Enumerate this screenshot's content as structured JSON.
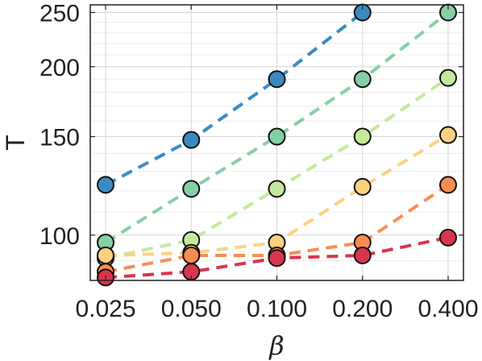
{
  "chart_data": {
    "type": "scatter",
    "x_scale": "log",
    "y_scale": "log",
    "grid": true,
    "minor_grid": true,
    "xlabel": "β",
    "ylabel": "T",
    "x": [
      0.025,
      0.05,
      0.1,
      0.2,
      0.4
    ],
    "x_ticks": [
      "0.025",
      "0.050",
      "0.100",
      "0.200",
      "0.400"
    ],
    "y_ticks": [
      100,
      150,
      200,
      250
    ],
    "y_tick_labels": [
      "100",
      "150",
      "200",
      "250"
    ],
    "xlim": [
      0.025,
      0.4
    ],
    "ylim": [
      83,
      258
    ],
    "line_style": "dashed",
    "series": [
      {
        "color": "#3b8bc2",
        "values": [
          123,
          148,
          190,
          250,
          null
        ]
      },
      {
        "color": "#86cfa5",
        "values": [
          97,
          121,
          150,
          190,
          250
        ]
      },
      {
        "color": "#c6e89c",
        "values": [
          91,
          98,
          121,
          150,
          191
        ]
      },
      {
        "color": "#fdd181",
        "values": [
          92,
          93,
          97,
          122,
          151
        ]
      },
      {
        "color": "#f88d52",
        "values": [
          86,
          92,
          92,
          97,
          123
        ]
      },
      {
        "color": "#d7364c",
        "values": [
          84,
          86,
          91,
          92,
          99
        ]
      }
    ]
  }
}
